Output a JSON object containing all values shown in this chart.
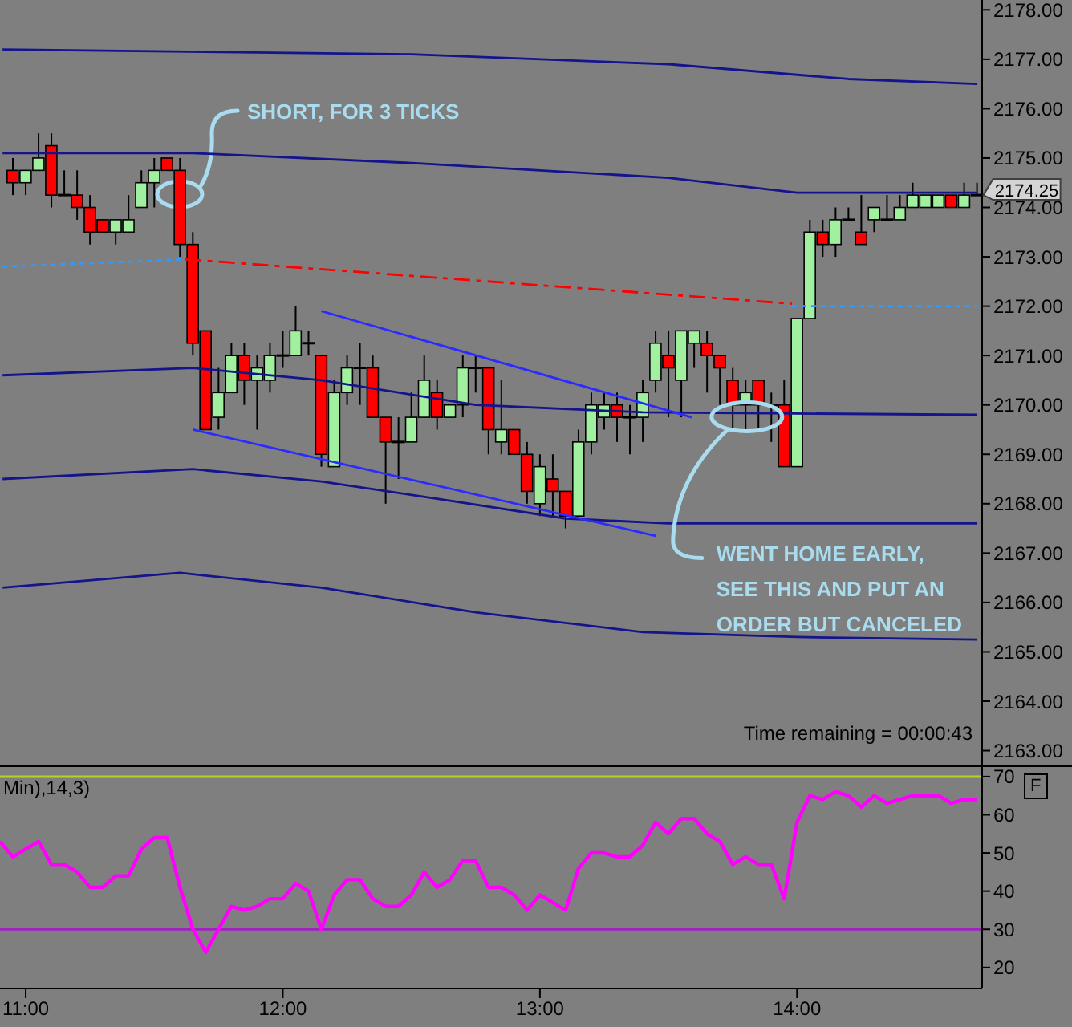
{
  "chart_data": [
    {
      "type": "candlestick",
      "x": [
        10.95,
        11,
        11.05,
        11.1,
        11.15,
        11.2,
        11.25,
        11.3,
        11.35,
        11.4,
        11.45,
        11.5,
        11.55,
        11.6,
        11.65,
        11.7,
        11.75,
        11.8,
        11.85,
        11.9,
        11.95,
        12,
        12.05,
        12.1,
        12.15,
        12.2,
        12.25,
        12.3,
        12.35,
        12.4,
        12.45,
        12.5,
        12.55,
        12.6,
        12.65,
        12.7,
        12.75,
        12.8,
        12.85,
        12.9,
        12.95,
        13,
        13.05,
        13.1,
        13.15,
        13.2,
        13.25,
        13.3,
        13.35,
        13.4,
        13.45,
        13.5,
        13.55,
        13.6,
        13.65,
        13.7,
        13.75,
        13.8,
        13.85,
        13.9,
        13.95,
        14,
        14.05,
        14.1,
        14.15,
        14.2,
        14.25,
        14.3,
        14.35,
        14.4,
        14.45,
        14.5,
        14.55,
        14.6,
        14.65,
        14.7
      ],
      "ohlc": [
        [
          2174.75,
          2175.0,
          2174.25,
          2174.5
        ],
        [
          2174.5,
          2174.75,
          2174.25,
          2174.75
        ],
        [
          2174.75,
          2175.5,
          2174.75,
          2175.0
        ],
        [
          2175.25,
          2175.5,
          2174.0,
          2174.25
        ],
        [
          2174.25,
          2174.75,
          2174.25,
          2174.25
        ],
        [
          2174.25,
          2174.75,
          2173.75,
          2174.0
        ],
        [
          2174.0,
          2174.25,
          2173.25,
          2173.5
        ],
        [
          2173.75,
          2173.75,
          2173.5,
          2173.5
        ],
        [
          2173.5,
          2173.75,
          2173.25,
          2173.75
        ],
        [
          2173.5,
          2174.25,
          2173.5,
          2173.75
        ],
        [
          2174.0,
          2174.75,
          2174.0,
          2174.5
        ],
        [
          2174.5,
          2175.0,
          2174.0,
          2174.75
        ],
        [
          2175.0,
          2175.0,
          2174.75,
          2174.75
        ],
        [
          2174.75,
          2175.0,
          2173.0,
          2173.25
        ],
        [
          2173.25,
          2173.5,
          2171.0,
          2171.25
        ],
        [
          2171.5,
          2171.5,
          2169.5,
          2169.5
        ],
        [
          2169.75,
          2170.75,
          2169.5,
          2170.25
        ],
        [
          2170.25,
          2171.25,
          2170.25,
          2171.0
        ],
        [
          2171.0,
          2171.25,
          2170.0,
          2170.5
        ],
        [
          2170.5,
          2171.0,
          2169.5,
          2170.75
        ],
        [
          2170.5,
          2171.25,
          2170.25,
          2171.0
        ],
        [
          2171.0,
          2171.5,
          2170.75,
          2171.0
        ],
        [
          2171.0,
          2172.0,
          2171.0,
          2171.5
        ],
        [
          2171.25,
          2171.5,
          2171.0,
          2171.25
        ],
        [
          2171.0,
          2171.0,
          2168.75,
          2169.0
        ],
        [
          2168.75,
          2170.5,
          2168.75,
          2170.25
        ],
        [
          2170.25,
          2171.0,
          2170.0,
          2170.75
        ],
        [
          2170.75,
          2171.25,
          2170.0,
          2170.75
        ],
        [
          2170.75,
          2171.0,
          2169.75,
          2169.75
        ],
        [
          2169.75,
          2169.75,
          2168.0,
          2169.25
        ],
        [
          2169.25,
          2169.75,
          2168.5,
          2169.25
        ],
        [
          2169.25,
          2170.25,
          2169.25,
          2169.75
        ],
        [
          2169.75,
          2171.0,
          2169.75,
          2170.5
        ],
        [
          2170.25,
          2170.5,
          2169.5,
          2169.75
        ],
        [
          2169.75,
          2170.0,
          2169.75,
          2170.0
        ],
        [
          2170.0,
          2171.0,
          2169.75,
          2170.75
        ],
        [
          2170.75,
          2171.0,
          2170.25,
          2170.75
        ],
        [
          2170.75,
          2170.75,
          2169.0,
          2169.5
        ],
        [
          2169.25,
          2170.5,
          2169.0,
          2169.5
        ],
        [
          2169.5,
          2169.5,
          2169.0,
          2169.0
        ],
        [
          2169.0,
          2169.25,
          2168.0,
          2168.25
        ],
        [
          2168.0,
          2169.0,
          2167.75,
          2168.75
        ],
        [
          2168.5,
          2169.0,
          2167.75,
          2168.25
        ],
        [
          2168.25,
          2168.25,
          2167.5,
          2167.75
        ],
        [
          2167.75,
          2169.5,
          2167.75,
          2169.25
        ],
        [
          2169.25,
          2170.25,
          2169.0,
          2170.0
        ],
        [
          2169.75,
          2170.25,
          2169.5,
          2170.0
        ],
        [
          2170.0,
          2170.25,
          2169.25,
          2169.75
        ],
        [
          2169.75,
          2170.0,
          2169.0,
          2169.75
        ],
        [
          2169.75,
          2170.5,
          2169.25,
          2170.25
        ],
        [
          2170.5,
          2171.5,
          2170.25,
          2171.25
        ],
        [
          2171.0,
          2171.5,
          2169.75,
          2170.75
        ],
        [
          2170.5,
          2171.5,
          2169.75,
          2171.5
        ],
        [
          2171.25,
          2171.5,
          2170.75,
          2171.5
        ],
        [
          2171.25,
          2171.5,
          2170.25,
          2171.0
        ],
        [
          2171.0,
          2171.0,
          2170.0,
          2170.75
        ],
        [
          2170.5,
          2170.75,
          2169.5,
          2170.0
        ],
        [
          2170.0,
          2170.5,
          2169.5,
          2170.25
        ],
        [
          2170.5,
          2170.5,
          2169.5,
          2170.0
        ],
        [
          2170.0,
          2170.25,
          2169.25,
          2170.0
        ],
        [
          2170.0,
          2170.5,
          2168.75,
          2168.75
        ],
        [
          2168.75,
          2171.75,
          2168.75,
          2171.75
        ],
        [
          2171.75,
          2173.75,
          2171.75,
          2173.5
        ],
        [
          2173.5,
          2173.75,
          2173.0,
          2173.25
        ],
        [
          2173.25,
          2174.0,
          2173.0,
          2173.75
        ],
        [
          2173.75,
          2174.0,
          2173.75,
          2173.75
        ],
        [
          2173.5,
          2174.25,
          2173.25,
          2173.25
        ],
        [
          2173.75,
          2174.0,
          2173.5,
          2174.0
        ],
        [
          2173.75,
          2174.25,
          2173.75,
          2173.75
        ],
        [
          2173.75,
          2174.25,
          2173.75,
          2174.0
        ],
        [
          2174.0,
          2174.5,
          2174.0,
          2174.25
        ],
        [
          2174.0,
          2174.25,
          2174.0,
          2174.25
        ],
        [
          2174.0,
          2174.25,
          2174.0,
          2174.25
        ],
        [
          2174.25,
          2174.25,
          2174.0,
          2174.0
        ],
        [
          2174.0,
          2174.5,
          2174.0,
          2174.25
        ],
        [
          2174.25,
          2174.5,
          2174.25,
          2174.25
        ]
      ],
      "colors": [
        "#ff0000",
        "#a0f0a0",
        "#a0f0a0",
        "#ff0000",
        "#000000",
        "#ff0000",
        "#ff0000",
        "#ff0000",
        "#a0f0a0",
        "#a0f0a0",
        "#a0f0a0",
        "#a0f0a0",
        "#ff0000",
        "#ff0000",
        "#ff0000",
        "#ff0000",
        "#a0f0a0",
        "#a0f0a0",
        "#ff0000",
        "#a0f0a0",
        "#a0f0a0",
        "#000000",
        "#a0f0a0",
        "#000000",
        "#ff0000",
        "#a0f0a0",
        "#a0f0a0",
        "#000000",
        "#ff0000",
        "#ff0000",
        "#000000",
        "#a0f0a0",
        "#a0f0a0",
        "#ff0000",
        "#a0f0a0",
        "#a0f0a0",
        "#000000",
        "#ff0000",
        "#a0f0a0",
        "#ff0000",
        "#ff0000",
        "#a0f0a0",
        "#ff0000",
        "#ff0000",
        "#a0f0a0",
        "#a0f0a0",
        "#a0f0a0",
        "#ff0000",
        "#000000",
        "#a0f0a0",
        "#a0f0a0",
        "#ff0000",
        "#a0f0a0",
        "#a0f0a0",
        "#ff0000",
        "#ff0000",
        "#ff0000",
        "#a0f0a0",
        "#ff0000",
        "#000000",
        "#ff0000",
        "#a0f0a0",
        "#a0f0a0",
        "#ff0000",
        "#a0f0a0",
        "#000000",
        "#ff0000",
        "#a0f0a0",
        "#000000",
        "#a0f0a0",
        "#a0f0a0",
        "#a0f0a0",
        "#a0f0a0",
        "#ff0000",
        "#a0f0a0",
        "#000000"
      ],
      "series": [
        {
          "type": "line",
          "color": "#14148c",
          "x": [
            10.91,
            12.5,
            13.5,
            14.2,
            14.7
          ],
          "values": [
            2177.2,
            2177.1,
            2176.9,
            2176.6,
            2176.5
          ]
        },
        {
          "type": "line",
          "color": "#14148c",
          "x": [
            10.91,
            11.65,
            12.5,
            13.5,
            14,
            14.7
          ],
          "values": [
            2175.1,
            2175.1,
            2174.9,
            2174.6,
            2174.3,
            2174.3
          ]
        },
        {
          "type": "line",
          "color": "#3399ff",
          "line_style": "dotted",
          "x": [
            10.91,
            11.62
          ],
          "values": [
            2172.8,
            2172.95
          ]
        },
        {
          "type": "line",
          "color": "#ff0000",
          "line_style": "dashed",
          "x": [
            11.62,
            13.98
          ],
          "values": [
            2172.95,
            2172.05
          ]
        },
        {
          "type": "line",
          "color": "#3399ff",
          "line_style": "dotted",
          "x": [
            13.98,
            14.7
          ],
          "values": [
            2172.0,
            2172.0
          ]
        },
        {
          "type": "line",
          "color": "#14148c",
          "x": [
            10.91,
            11.65,
            12.15,
            12.75,
            13.4,
            14.7
          ],
          "values": [
            2170.6,
            2170.75,
            2170.5,
            2170.0,
            2169.85,
            2169.8
          ]
        },
        {
          "type": "line",
          "color": "#14148c",
          "x": [
            10.91,
            11.65,
            12.15,
            12.6,
            13.1,
            13.5,
            14.7
          ],
          "values": [
            2168.5,
            2168.7,
            2168.45,
            2168.1,
            2167.7,
            2167.6,
            2167.6
          ]
        },
        {
          "type": "line",
          "color": "#14148c",
          "x": [
            10.91,
            11.6,
            12.15,
            12.75,
            13.4,
            14,
            14.7
          ],
          "values": [
            2166.3,
            2166.6,
            2166.3,
            2165.8,
            2165.4,
            2165.3,
            2165.25
          ]
        },
        {
          "type": "line",
          "color": "#2b2bff",
          "x": [
            12.15,
            13.59
          ],
          "values": [
            2171.9,
            2169.75
          ]
        },
        {
          "type": "line",
          "color": "#2b2bff",
          "x": [
            11.65,
            13.45
          ],
          "values": [
            2169.5,
            2167.35
          ]
        }
      ],
      "xlim": [
        10.9,
        14.72
      ],
      "ylim": [
        2162.7,
        2178.2
      ],
      "yticks": [
        {
          "value": 2163,
          "label": "2163.00"
        },
        {
          "value": 2164,
          "label": "2164.00"
        },
        {
          "value": 2165,
          "label": "2165.00"
        },
        {
          "value": 2166,
          "label": "2166.00"
        },
        {
          "value": 2167,
          "label": "2167.00"
        },
        {
          "value": 2168,
          "label": "2168.00"
        },
        {
          "value": 2169,
          "label": "2169.00"
        },
        {
          "value": 2170,
          "label": "2170.00"
        },
        {
          "value": 2171,
          "label": "2171.00"
        },
        {
          "value": 2172,
          "label": "2172.00"
        },
        {
          "value": 2173,
          "label": "2173.00"
        },
        {
          "value": 2174,
          "label": "2174.00"
        },
        {
          "value": 2175,
          "label": "2175.00"
        },
        {
          "value": 2176,
          "label": "2176.00"
        },
        {
          "value": 2177,
          "label": "2177.00"
        },
        {
          "value": 2178,
          "label": "2178.00"
        }
      ],
      "tick_labels": "y",
      "annotations": [
        "SHORT, FOR 3 TICKS",
        {
          "text": "WENT HOME EARLY, SEE THIS AND PUT AN ORDER BUT CANCELED",
          "x": 13.73,
          "y": 2169.5
        },
        "Time remaining = 00:00:43",
        {
          "text": "2174.25",
          "x": 14.7,
          "y": 2174.25
        }
      ]
    },
    {
      "type": "line",
      "color": "#ff00ff",
      "x": [
        10.9,
        10.95,
        11.05,
        11.1,
        11.15,
        11.2,
        11.25,
        11.3,
        11.35,
        11.4,
        11.45,
        11.5,
        11.55,
        11.6,
        11.65,
        11.7,
        11.75,
        11.8,
        11.85,
        11.9,
        11.95,
        12,
        12.05,
        12.1,
        12.15,
        12.2,
        12.25,
        12.3,
        12.35,
        12.4,
        12.45,
        12.5,
        12.55,
        12.6,
        12.65,
        12.7,
        12.75,
        12.8,
        12.85,
        12.9,
        12.95,
        13,
        13.05,
        13.1,
        13.15,
        13.2,
        13.25,
        13.3,
        13.35,
        13.4,
        13.45,
        13.5,
        13.55,
        13.6,
        13.65,
        13.7,
        13.75,
        13.8,
        13.85,
        13.9,
        13.95,
        14,
        14.05,
        14.1,
        14.15,
        14.2,
        14.25,
        14.3,
        14.35,
        14.4,
        14.45,
        14.5,
        14.55,
        14.6,
        14.65,
        14.7
      ],
      "values": [
        53,
        49,
        53,
        47,
        47,
        45,
        41,
        41,
        44,
        44,
        51,
        54,
        54,
        41,
        30,
        24,
        30,
        36,
        35,
        36,
        38,
        38,
        42,
        40,
        30,
        39,
        43,
        43,
        38,
        36,
        36,
        39,
        45,
        41,
        43,
        48,
        48,
        41,
        41,
        39,
        35,
        39,
        37,
        35,
        46,
        50,
        50,
        49,
        49,
        52,
        58,
        55,
        59,
        59,
        55,
        53,
        47,
        49,
        47,
        47,
        38,
        58,
        65,
        64,
        66,
        65,
        62,
        65,
        63,
        64,
        65,
        65,
        65,
        63,
        64,
        64
      ],
      "xlim": [
        10.9,
        14.72
      ],
      "xticks": [
        {
          "value": 11,
          "label": "11:00"
        },
        {
          "value": 12,
          "label": "12:00"
        },
        {
          "value": 13,
          "label": "13:00"
        },
        {
          "value": 14,
          "label": "14:00"
        }
      ],
      "ylim": [
        14.5,
        72.5
      ],
      "yticks": [
        20,
        30,
        40,
        50,
        60,
        70
      ],
      "ref_lines": [
        {
          "axis": "y",
          "value": 70,
          "color": "#b4d22a"
        },
        {
          "axis": "y",
          "value": 30,
          "color": "#a020c0"
        }
      ],
      "annotations": [
        "Min),14,3)",
        "F"
      ]
    }
  ]
}
